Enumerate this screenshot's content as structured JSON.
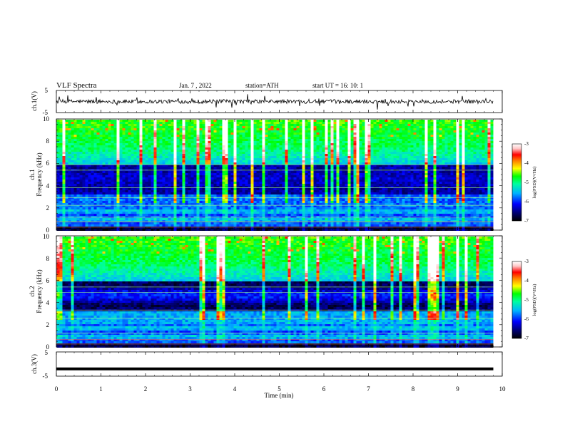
{
  "header": {
    "title": "VLF  Spectra",
    "date": "Jan.  7  , 2022",
    "station": "station=ATH",
    "start": "start  UT  =    16: 10: 1"
  },
  "chart_data": [
    {
      "id": "ch1-waveform",
      "type": "line",
      "ylabel": "ch.1(V)",
      "ylim": [
        -5,
        5
      ],
      "yticks": [
        "5",
        "-5"
      ],
      "xlim": [
        0,
        10
      ],
      "trace_color": "#000000",
      "level_v": 0
    },
    {
      "id": "ch1-spectrogram",
      "type": "heatmap",
      "ylabel": "ch.1\nFrequency  (kHz)",
      "ylim": [
        0,
        10
      ],
      "yticks": [
        "0",
        "2",
        "4",
        "6",
        "8",
        "10"
      ],
      "xlim": [
        0,
        10
      ],
      "data_end_min": 9.8,
      "colorbar": {
        "label": "log(PSD)(V²/Hz)",
        "range": [
          -7,
          -3
        ],
        "ticks": [
          "-3",
          "-4",
          "-5",
          "-6",
          "-7"
        ],
        "colors": [
          "#000000",
          "#00006e",
          "#0000ff",
          "#00b4ff",
          "#00ffa0",
          "#00ff00",
          "#ffff00",
          "#ff8000",
          "#ff0000",
          "#ffc8c8",
          "#ffffff"
        ]
      }
    },
    {
      "id": "ch2-spectrogram",
      "type": "heatmap",
      "ylabel": "ch.2\nFrequency  (kHz)",
      "ylim": [
        0,
        10
      ],
      "yticks": [
        "0",
        "2",
        "4",
        "6",
        "8",
        "10"
      ],
      "xlim": [
        0,
        10
      ],
      "data_end_min": 9.8,
      "colorbar": {
        "label": "log(PSD)(V²/Hz)",
        "range": [
          -7,
          -3
        ],
        "ticks": [
          "-3",
          "-4",
          "-5",
          "-6",
          "-7"
        ],
        "colors": [
          "#000000",
          "#00006e",
          "#0000ff",
          "#00b4ff",
          "#00ffa0",
          "#00ff00",
          "#ffff00",
          "#ff8000",
          "#ff0000",
          "#ffc8c8",
          "#ffffff"
        ]
      }
    },
    {
      "id": "ch3-waveform",
      "type": "line",
      "ylabel": "ch.3(V)",
      "ylim": [
        -5,
        5
      ],
      "yticks": [
        "5",
        "0",
        "-5"
      ],
      "xlim": [
        0,
        10
      ],
      "trace_color": "#000000",
      "level_v": -2
    }
  ],
  "xaxis": {
    "label": "Time  (min)",
    "ticks": [
      "0",
      "1",
      "2",
      "3",
      "4",
      "5",
      "6",
      "7",
      "8",
      "9",
      "10"
    ]
  }
}
